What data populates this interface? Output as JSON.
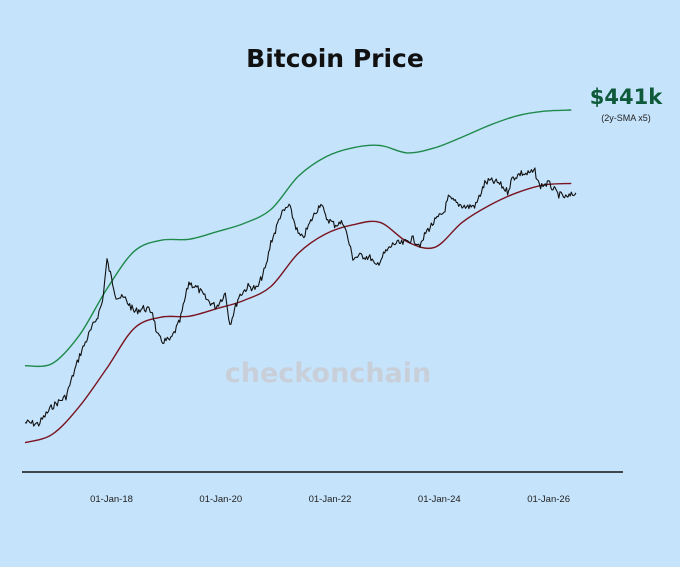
{
  "chart_data": {
    "type": "line",
    "title": "Bitcoin Price",
    "xlabel": "",
    "ylabel": "",
    "y_scale": "log",
    "y_axis_shown": false,
    "grid": false,
    "legend": "none",
    "x_tick_labels": [
      "01-Jan-18",
      "01-Jan-20",
      "01-Jan-22",
      "01-Jan-24",
      "01-Jan-26"
    ],
    "x_range": [
      "2016-06",
      "2026-09"
    ],
    "annotation": {
      "value": "$441k",
      "note": "(2y-SMA x5)",
      "color": "#0f5a3a"
    },
    "watermark": "checkonchain",
    "series": [
      {
        "role": "price",
        "color": "#111111",
        "x": [
          "2016-06",
          "2016-09",
          "2016-12",
          "2017-03",
          "2017-06",
          "2017-08",
          "2017-10",
          "2017-11",
          "2017-12",
          "2018-01",
          "2018-02",
          "2018-04",
          "2018-06",
          "2018-08",
          "2018-10",
          "2018-11",
          "2018-12",
          "2019-02",
          "2019-04",
          "2019-06",
          "2019-08",
          "2019-10",
          "2019-12",
          "2020-02",
          "2020-03",
          "2020-05",
          "2020-07",
          "2020-09",
          "2020-11",
          "2020-12",
          "2021-01",
          "2021-02",
          "2021-04",
          "2021-06",
          "2021-07",
          "2021-09",
          "2021-11",
          "2021-12",
          "2022-02",
          "2022-04",
          "2022-06",
          "2022-08",
          "2022-10",
          "2022-11",
          "2023-01",
          "2023-03",
          "2023-05",
          "2023-07",
          "2023-09",
          "2023-10",
          "2023-12",
          "2024-02",
          "2024-03",
          "2024-05",
          "2024-07",
          "2024-09",
          "2024-11",
          "2024-12",
          "2025-02",
          "2025-04",
          "2025-05",
          "2025-07",
          "2025-08",
          "2025-10",
          "2025-11",
          "2026-01",
          "2026-03",
          "2026-05",
          "2026-07"
        ],
        "values": [
          640,
          620,
          900,
          1100,
          2600,
          4000,
          6000,
          8000,
          19000,
          13000,
          9000,
          8500,
          6500,
          7000,
          6500,
          4000,
          3500,
          3600,
          5300,
          12000,
          10500,
          8300,
          7200,
          9600,
          5000,
          9000,
          11000,
          10500,
          17000,
          28000,
          35000,
          48000,
          60000,
          33000,
          30000,
          45000,
          64000,
          47000,
          40000,
          42000,
          20000,
          21000,
          20000,
          16500,
          22000,
          27000,
          27000,
          30000,
          26000,
          34000,
          43000,
          52000,
          70000,
          62000,
          58000,
          60000,
          95000,
          100000,
          96000,
          80000,
          105000,
          118000,
          115000,
          122000,
          90000,
          95000,
          76000,
          70000,
          78000
        ]
      },
      {
        "role": "2y-SMA",
        "color": "#7a1420",
        "x": [
          "2016-06",
          "2016-12",
          "2017-06",
          "2017-12",
          "2018-06",
          "2018-12",
          "2019-06",
          "2019-12",
          "2020-06",
          "2020-12",
          "2021-06",
          "2021-12",
          "2022-06",
          "2022-12",
          "2023-06",
          "2023-12",
          "2024-06",
          "2024-12",
          "2025-06",
          "2025-12",
          "2026-06"
        ],
        "values": [
          420,
          500,
          900,
          2000,
          4600,
          5800,
          5900,
          6900,
          8200,
          11000,
          22000,
          33000,
          40000,
          42000,
          28000,
          25000,
          42000,
          60000,
          78000,
          92000,
          95000
        ]
      },
      {
        "role": "2y-SMA x5",
        "color": "#1f8a4c",
        "x": [
          "2016-06",
          "2016-12",
          "2017-06",
          "2017-12",
          "2018-06",
          "2018-12",
          "2019-06",
          "2019-12",
          "2020-06",
          "2020-12",
          "2021-06",
          "2021-12",
          "2022-06",
          "2022-12",
          "2023-06",
          "2023-12",
          "2024-06",
          "2024-12",
          "2025-06",
          "2025-12",
          "2026-06"
        ],
        "values": [
          2100,
          2200,
          4000,
          10500,
          23000,
          29000,
          29500,
          34500,
          41000,
          55000,
          110000,
          165000,
          200000,
          210000,
          180000,
          200000,
          250000,
          320000,
          390000,
          430000,
          441000
        ]
      }
    ]
  }
}
